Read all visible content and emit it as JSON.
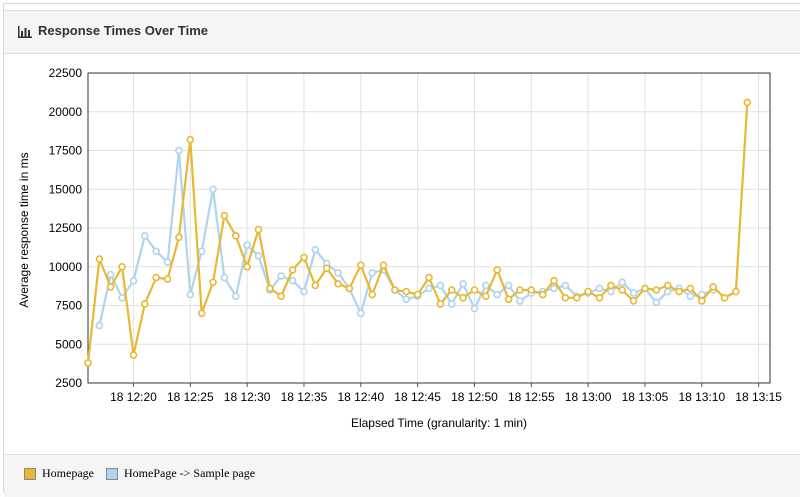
{
  "panel": {
    "title": "Response Times Over Time",
    "icon": "bar-chart-icon"
  },
  "colors": {
    "homepage": "#e8b835",
    "sample_page": "#aed4ee",
    "grid": "#dddddd",
    "panel_header_bg": "#f5f5f5"
  },
  "chart_data": {
    "type": "line",
    "xlabel": "Elapsed Time (granularity: 1 min)",
    "ylabel": "Average response time in ms",
    "ylim": [
      2500,
      22500
    ],
    "yticks": [
      2500,
      5000,
      7500,
      10000,
      12500,
      15000,
      17500,
      20000,
      22500
    ],
    "xlim": [
      "12:16",
      "13:16"
    ],
    "xtick_labels": [
      "18 12:20",
      "18 12:25",
      "18 12:30",
      "18 12:35",
      "18 12:40",
      "18 12:45",
      "18 12:50",
      "18 12:55",
      "18 13:00",
      "18 13:05",
      "18 13:10",
      "18 13:15"
    ],
    "grid": true,
    "legend_position": "bottom",
    "series": [
      {
        "name": "Homepage",
        "color": "#e8b835",
        "points": [
          [
            "12:16",
            3800
          ],
          [
            "12:17",
            10500
          ],
          [
            "12:18",
            8700
          ],
          [
            "12:19",
            10000
          ],
          [
            "12:20",
            4300
          ],
          [
            "12:21",
            7600
          ],
          [
            "12:22",
            9300
          ],
          [
            "12:23",
            9200
          ],
          [
            "12:24",
            11900
          ],
          [
            "12:25",
            18200
          ],
          [
            "12:26",
            7000
          ],
          [
            "12:27",
            9000
          ],
          [
            "12:28",
            13300
          ],
          [
            "12:29",
            12000
          ],
          [
            "12:30",
            10000
          ],
          [
            "12:31",
            12400
          ],
          [
            "12:32",
            8600
          ],
          [
            "12:33",
            8100
          ],
          [
            "12:34",
            9800
          ],
          [
            "12:35",
            10600
          ],
          [
            "12:36",
            8800
          ],
          [
            "12:37",
            9900
          ],
          [
            "12:38",
            8900
          ],
          [
            "12:39",
            8600
          ],
          [
            "12:40",
            10100
          ],
          [
            "12:41",
            8200
          ],
          [
            "12:42",
            10100
          ],
          [
            "12:43",
            8500
          ],
          [
            "12:44",
            8400
          ],
          [
            "12:45",
            8200
          ],
          [
            "12:46",
            9300
          ],
          [
            "12:47",
            7600
          ],
          [
            "12:48",
            8500
          ],
          [
            "12:49",
            8000
          ],
          [
            "12:50",
            8500
          ],
          [
            "12:51",
            8100
          ],
          [
            "12:52",
            9800
          ],
          [
            "12:53",
            7900
          ],
          [
            "12:54",
            8500
          ],
          [
            "12:55",
            8500
          ],
          [
            "12:56",
            8200
          ],
          [
            "12:57",
            9100
          ],
          [
            "12:58",
            8000
          ],
          [
            "12:59",
            8000
          ],
          [
            "13:00",
            8400
          ],
          [
            "13:01",
            8000
          ],
          [
            "13:02",
            8800
          ],
          [
            "13:03",
            8500
          ],
          [
            "13:04",
            7800
          ],
          [
            "13:05",
            8600
          ],
          [
            "13:06",
            8500
          ],
          [
            "13:07",
            8800
          ],
          [
            "13:08",
            8400
          ],
          [
            "13:09",
            8600
          ],
          [
            "13:10",
            7800
          ],
          [
            "13:11",
            8700
          ],
          [
            "13:12",
            8000
          ],
          [
            "13:13",
            8400
          ],
          [
            "13:14",
            20600
          ]
        ]
      },
      {
        "name": "HomePage -> Sample page",
        "color": "#aed4ee",
        "points": [
          [
            "12:17",
            6200
          ],
          [
            "12:18",
            9500
          ],
          [
            "12:19",
            8000
          ],
          [
            "12:20",
            9100
          ],
          [
            "12:21",
            12000
          ],
          [
            "12:22",
            11000
          ],
          [
            "12:23",
            10300
          ],
          [
            "12:24",
            17500
          ],
          [
            "12:25",
            8200
          ],
          [
            "12:26",
            11000
          ],
          [
            "12:27",
            15000
          ],
          [
            "12:28",
            9300
          ],
          [
            "12:29",
            8100
          ],
          [
            "12:30",
            11400
          ],
          [
            "12:31",
            10700
          ],
          [
            "12:32",
            8500
          ],
          [
            "12:33",
            9400
          ],
          [
            "12:34",
            9100
          ],
          [
            "12:35",
            8400
          ],
          [
            "12:36",
            11100
          ],
          [
            "12:37",
            10200
          ],
          [
            "12:38",
            9600
          ],
          [
            "12:39",
            8600
          ],
          [
            "12:40",
            7000
          ],
          [
            "12:41",
            9600
          ],
          [
            "12:42",
            9800
          ],
          [
            "12:43",
            8500
          ],
          [
            "12:44",
            7900
          ],
          [
            "12:45",
            8100
          ],
          [
            "12:46",
            8600
          ],
          [
            "12:47",
            8800
          ],
          [
            "12:48",
            7600
          ],
          [
            "12:49",
            8900
          ],
          [
            "12:50",
            7300
          ],
          [
            "12:51",
            8800
          ],
          [
            "12:52",
            8200
          ],
          [
            "12:53",
            8800
          ],
          [
            "12:54",
            7800
          ],
          [
            "12:55",
            8300
          ],
          [
            "12:56",
            8400
          ],
          [
            "12:57",
            8600
          ],
          [
            "12:58",
            8800
          ],
          [
            "12:59",
            8100
          ],
          [
            "13:00",
            8300
          ],
          [
            "13:01",
            8600
          ],
          [
            "13:02",
            8400
          ],
          [
            "13:03",
            9000
          ],
          [
            "13:04",
            8300
          ],
          [
            "13:05",
            8600
          ],
          [
            "13:06",
            7700
          ],
          [
            "13:07",
            8400
          ],
          [
            "13:08",
            8600
          ],
          [
            "13:09",
            8100
          ],
          [
            "13:10",
            8200
          ],
          [
            "13:11",
            8500
          ]
        ]
      }
    ]
  }
}
